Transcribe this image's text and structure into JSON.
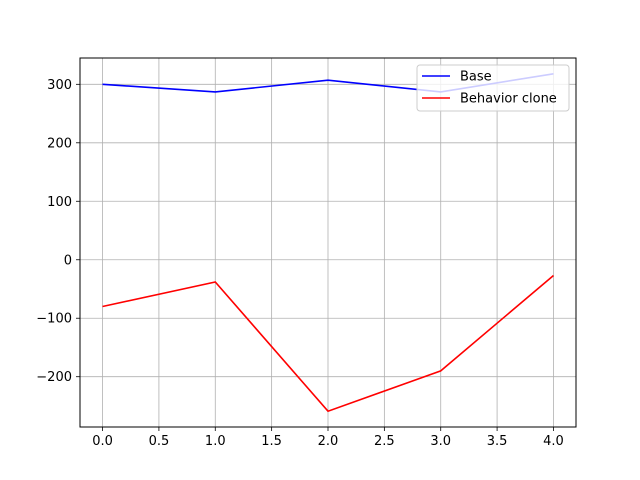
{
  "chart_data": {
    "type": "line",
    "title": "",
    "xlabel": "",
    "ylabel": "",
    "x": [
      0,
      1,
      2,
      3,
      4
    ],
    "xlim": [
      -0.2,
      4.2
    ],
    "ylim": [
      -286,
      345
    ],
    "xticks": [
      0.0,
      0.5,
      1.0,
      1.5,
      2.0,
      2.5,
      3.0,
      3.5,
      4.0
    ],
    "xtick_labels": [
      "0.0",
      "0.5",
      "1.0",
      "1.5",
      "2.0",
      "2.5",
      "3.0",
      "3.5",
      "4.0"
    ],
    "yticks": [
      -200,
      -100,
      0,
      100,
      200,
      300
    ],
    "ytick_labels": [
      "−200",
      "−100",
      "0",
      "100",
      "200",
      "300"
    ],
    "grid": true,
    "legend_position": "top-right",
    "series": [
      {
        "name": "Base",
        "color": "#0000ff",
        "values": [
          300,
          287,
          307,
          287,
          318
        ]
      },
      {
        "name": "Behavior clone",
        "color": "#ff0000",
        "values": [
          -80,
          -38,
          -259,
          -190,
          -27
        ]
      }
    ]
  }
}
